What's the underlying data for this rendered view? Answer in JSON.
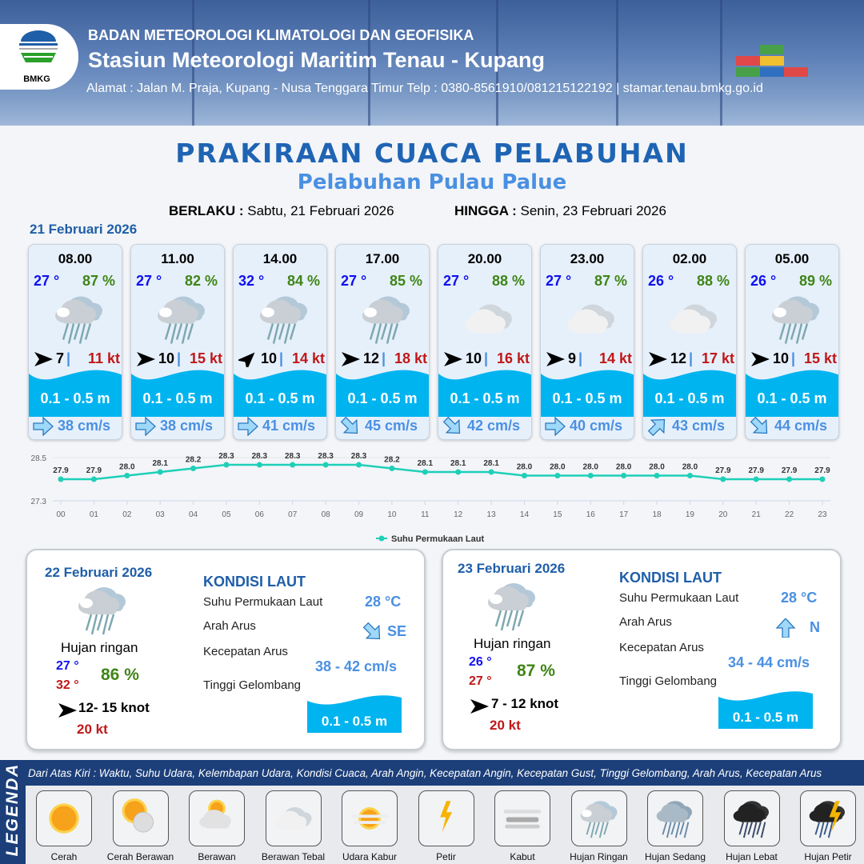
{
  "header": {
    "org": "BADAN METEOROLOGI KLIMATOLOGI DAN GEOFISIKA",
    "station": "Stasiun Meteorologi Maritim Tenau - Kupang",
    "address": "Alamat : Jalan M. Praja, Kupang - Nusa Tenggara Timur Telp : 0380-8561910/081215122192  | stamar.tenau.bmkg.go.id",
    "logo_text": "BMKG"
  },
  "title": "PRAKIRAAN CUACA PELABUHAN",
  "subtitle": "Pelabuhan Pulau Palue",
  "validity": {
    "from_label": "BERLAKU :",
    "from": "Sabtu, 21 Februari 2026",
    "to_label": "HINGGA :",
    "to": "Senin, 23 Februari 2026"
  },
  "day1": {
    "date": "21 Februari 2026",
    "cards": [
      {
        "time": "08.00",
        "temp": "27 °",
        "hum": "87 %",
        "icon": "hujan-ringan",
        "wind_dir_deg": 90,
        "wind": "7",
        "gust": "11 kt",
        "wave": "0.1 - 0.5 m",
        "current_dir_deg": 90,
        "current": "38 cm/s"
      },
      {
        "time": "11.00",
        "temp": "27 °",
        "hum": "82 %",
        "icon": "hujan-ringan",
        "wind_dir_deg": 90,
        "wind": "10",
        "gust": "15 kt",
        "wave": "0.1 - 0.5 m",
        "current_dir_deg": 90,
        "current": "38 cm/s"
      },
      {
        "time": "14.00",
        "temp": "32 °",
        "hum": "84 %",
        "icon": "hujan-ringan",
        "wind_dir_deg": 45,
        "wind": "10",
        "gust": "14 kt",
        "wave": "0.1 - 0.5 m",
        "current_dir_deg": 90,
        "current": "41 cm/s"
      },
      {
        "time": "17.00",
        "temp": "27 °",
        "hum": "85 %",
        "icon": "hujan-ringan",
        "wind_dir_deg": 90,
        "wind": "12",
        "gust": "18 kt",
        "wave": "0.1 - 0.5 m",
        "current_dir_deg": 135,
        "current": "45 cm/s"
      },
      {
        "time": "20.00",
        "temp": "27 °",
        "hum": "88 %",
        "icon": "berawan-tebal",
        "wind_dir_deg": 90,
        "wind": "10",
        "gust": "16 kt",
        "wave": "0.1 - 0.5 m",
        "current_dir_deg": 135,
        "current": "42 cm/s"
      },
      {
        "time": "23.00",
        "temp": "27 °",
        "hum": "87 %",
        "icon": "berawan-tebal",
        "wind_dir_deg": 90,
        "wind": "9",
        "gust": "14 kt",
        "wave": "0.1 - 0.5 m",
        "current_dir_deg": 90,
        "current": "40 cm/s"
      },
      {
        "time": "02.00",
        "temp": "26 °",
        "hum": "88 %",
        "icon": "berawan-tebal",
        "wind_dir_deg": 90,
        "wind": "12",
        "gust": "17 kt",
        "wave": "0.1 - 0.5 m",
        "current_dir_deg": 45,
        "current": "43 cm/s"
      },
      {
        "time": "05.00",
        "temp": "26 °",
        "hum": "89 %",
        "icon": "hujan-ringan",
        "wind_dir_deg": 90,
        "wind": "10",
        "gust": "15 kt",
        "wave": "0.1 - 0.5 m",
        "current_dir_deg": 135,
        "current": "44 cm/s"
      }
    ]
  },
  "chart_data": {
    "type": "line",
    "categories": [
      "00",
      "01",
      "02",
      "03",
      "04",
      "05",
      "06",
      "07",
      "08",
      "09",
      "10",
      "11",
      "12",
      "13",
      "14",
      "15",
      "16",
      "17",
      "18",
      "19",
      "20",
      "21",
      "22",
      "23"
    ],
    "series": [
      {
        "name": "Suhu Permukaan Laut",
        "values": [
          27.9,
          27.9,
          28.0,
          28.1,
          28.2,
          28.3,
          28.3,
          28.3,
          28.3,
          28.3,
          28.2,
          28.1,
          28.1,
          28.1,
          28.0,
          28.0,
          28.0,
          28.0,
          28.0,
          28.0,
          27.9,
          27.9,
          27.9,
          27.9
        ],
        "color": "#1fcfb8"
      }
    ],
    "ylim": [
      27.3,
      28.5
    ],
    "yticks": [
      "28.5",
      "27.3"
    ],
    "legend": "bottom",
    "grid": true
  },
  "panels": [
    {
      "date": "22 Februari 2026",
      "icon": "hujan-ringan",
      "condition": "Hujan ringan",
      "tmin": "27 °",
      "tmax": "32 °",
      "hum": "86 %",
      "wind": "12- 15 knot",
      "gust": "20 kt",
      "kondisi_title": "KONDISI LAUT",
      "sst_label": "Suhu Permukaan Laut",
      "sst": "28 °C",
      "dir_label": "Arah Arus",
      "dir": "SE",
      "current_dir_deg": 135,
      "speed_label": "Kecepatan Arus",
      "speed": "38 - 42 cm/s",
      "wave_label": "Tinggi Gelombang",
      "wave": "0.1 - 0.5 m"
    },
    {
      "date": "23 Februari 2026",
      "icon": "hujan-ringan",
      "condition": "Hujan ringan",
      "tmin": "26 °",
      "tmax": "27 °",
      "hum": "87 %",
      "wind": "7 - 12 knot",
      "gust": "20 kt",
      "kondisi_title": "KONDISI LAUT",
      "sst_label": "Suhu Permukaan Laut",
      "sst": "28 °C",
      "dir_label": "Arah Arus",
      "dir": "N",
      "current_dir_deg": 0,
      "speed_label": "Kecepatan Arus",
      "speed": "34 - 44 cm/s",
      "wave_label": "Tinggi Gelombang",
      "wave": "0.1 - 0.5 m"
    }
  ],
  "legend": {
    "title": "LEGENDA",
    "description": "Dari Atas Kiri : Waktu, Suhu Udara, Kelembapan Udara, Kondisi Cuaca, Arah Angin, Kecepatan Angin, Kecepatan Gust, Tinggi Gelombang, Arah Arus, Kecepatan Arus",
    "items": [
      {
        "label": "Cerah",
        "icon": "cerah"
      },
      {
        "label": "Cerah Berawan",
        "icon": "cerah-berawan"
      },
      {
        "label": "Berawan",
        "icon": "berawan"
      },
      {
        "label": "Berawan Tebal",
        "icon": "berawan-tebal"
      },
      {
        "label": "Udara Kabur",
        "icon": "udara-kabur"
      },
      {
        "label": "Petir",
        "icon": "petir"
      },
      {
        "label": "Kabut",
        "icon": "kabut"
      },
      {
        "label": "Hujan Ringan",
        "icon": "hujan-ringan"
      },
      {
        "label": "Hujan Sedang",
        "icon": "hujan-sedang"
      },
      {
        "label": "Hujan Lebat",
        "icon": "hujan-lebat"
      },
      {
        "label": "Hujan Petir",
        "icon": "hujan-petir"
      }
    ]
  }
}
